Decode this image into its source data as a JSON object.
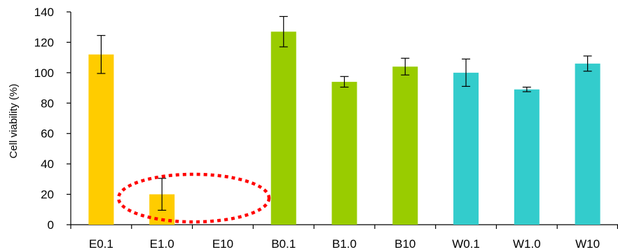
{
  "chart_data": {
    "type": "bar",
    "title": "",
    "xlabel": "",
    "ylabel": "Cell viability (%)",
    "ylim": [
      0,
      140
    ],
    "yticks": [
      0,
      20,
      40,
      60,
      80,
      100,
      120,
      140
    ],
    "grid": false,
    "legend": "none",
    "categories": [
      "E0.1",
      "E1.0",
      "E10",
      "B0.1",
      "B1.0",
      "B10",
      "W0.1",
      "W1.0",
      "W10"
    ],
    "values": [
      112,
      20,
      0,
      127,
      94,
      104,
      100,
      89,
      106
    ],
    "errors": [
      12.5,
      10.5,
      0,
      10,
      3.5,
      5.5,
      9,
      1.5,
      5
    ],
    "bar_colors": [
      "#ffcc00",
      "#ffcc00",
      "#ffcc00",
      "#99cc00",
      "#99cc00",
      "#99cc00",
      "#33cccc",
      "#33cccc",
      "#33cccc"
    ],
    "annotation": {
      "shape": "dashed-ellipse",
      "color": "#ff0000",
      "encloses": [
        "E1.0",
        "E10"
      ]
    }
  }
}
